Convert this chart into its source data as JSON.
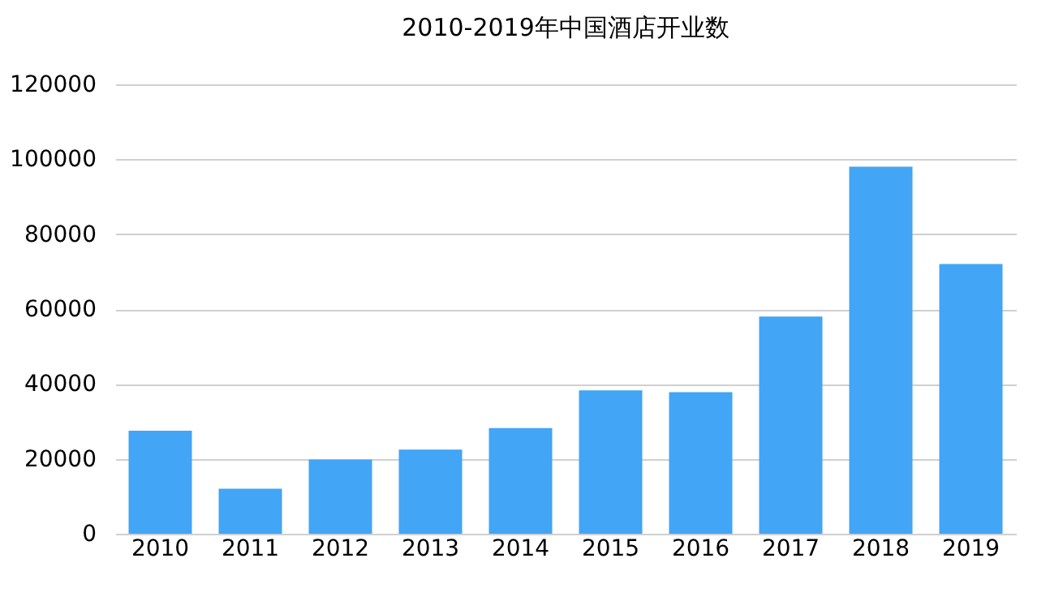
{
  "chart_data": {
    "type": "bar",
    "title": "2010-2019年中国酒店开业数",
    "categories": [
      "2010",
      "2011",
      "2012",
      "2013",
      "2014",
      "2015",
      "2016",
      "2017",
      "2018",
      "2019"
    ],
    "values": [
      27500,
      12000,
      19800,
      22500,
      28200,
      38300,
      37800,
      58000,
      98000,
      72000
    ],
    "color": "#42a5f5",
    "ylim": [
      0,
      120000
    ],
    "yticks": [
      0,
      20000,
      40000,
      60000,
      80000,
      100000,
      120000
    ],
    "grid": "y"
  }
}
